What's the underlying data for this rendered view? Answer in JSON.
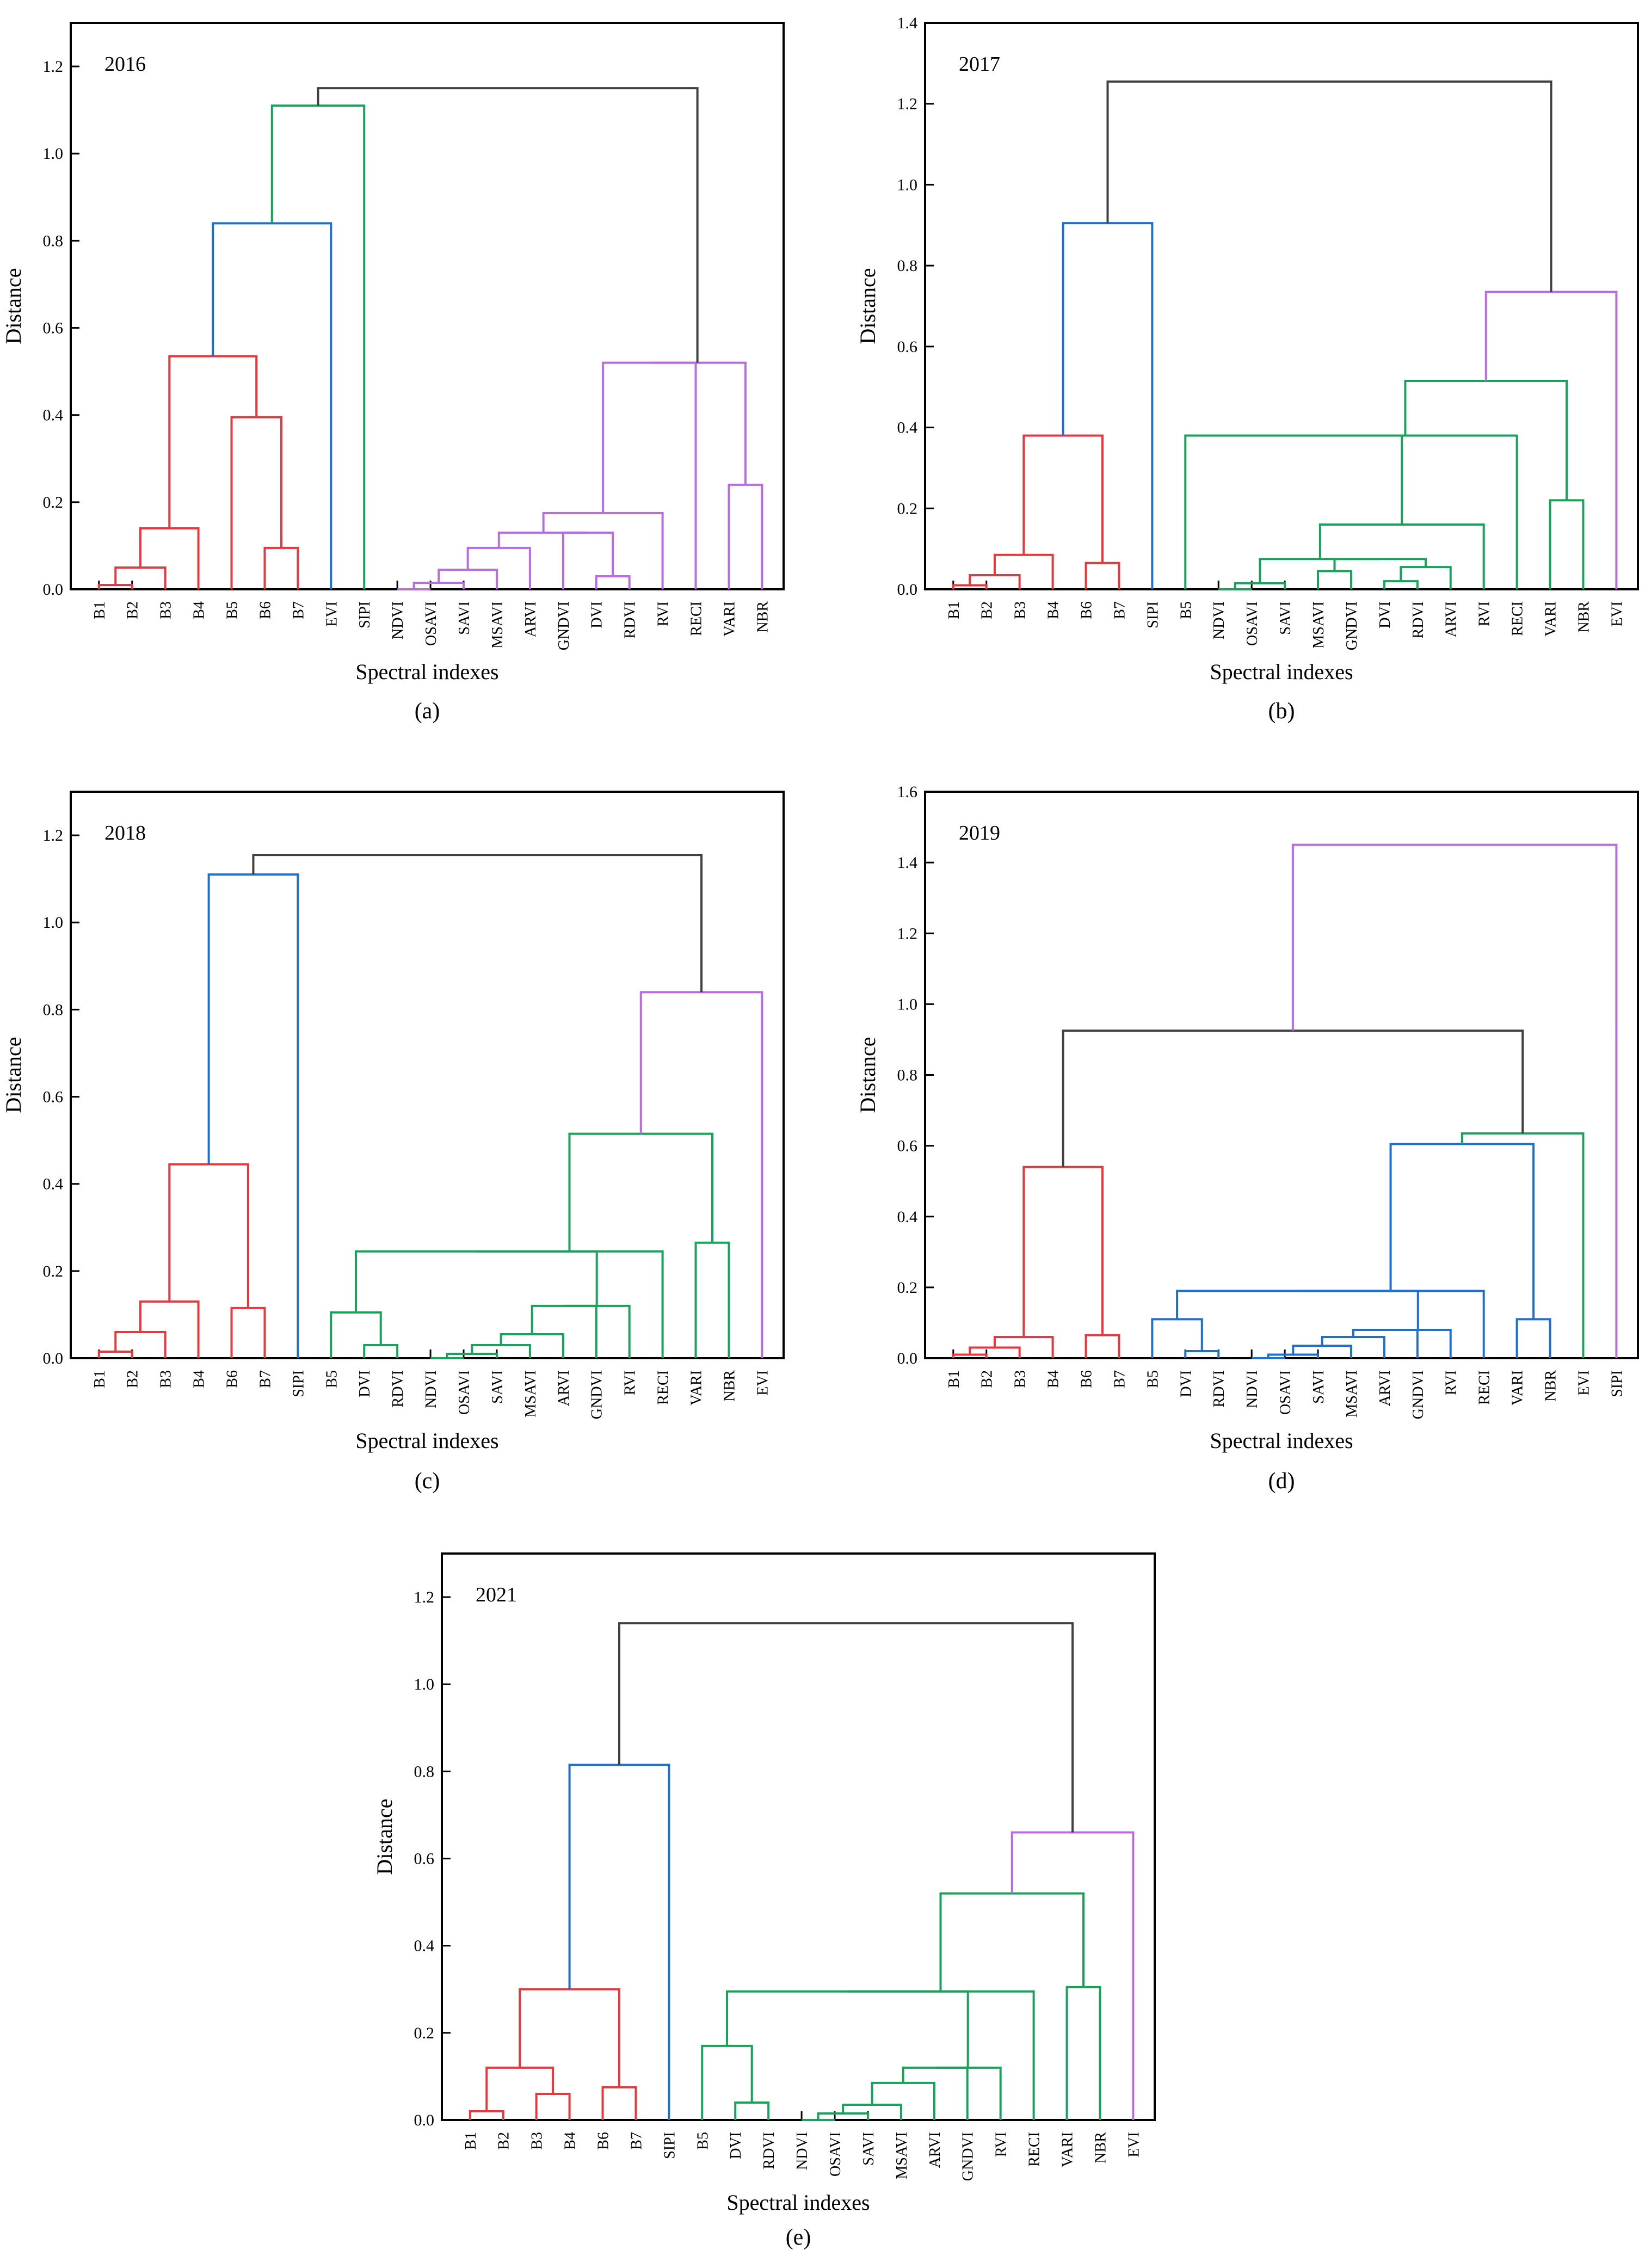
{
  "figure": {
    "description_labels": [
      "(a)",
      "(b)",
      "(c)",
      "(d)",
      "(e)"
    ]
  },
  "chart_data": [
    {
      "type": "dendrogram",
      "panel_label": "(a)",
      "title": "2016",
      "xlabel": "Spectral indexes",
      "ylabel": "Distance",
      "ylim": [
        0,
        1.3
      ],
      "yticks": [
        "0.0",
        "0.2",
        "0.4",
        "0.6",
        "0.8",
        "1.0",
        "1.2"
      ],
      "ytick_values": [
        0,
        0.2,
        0.4,
        0.6,
        0.8,
        1.0,
        1.2
      ],
      "leaves": [
        "B1",
        "B2",
        "B3",
        "B4",
        "B5",
        "B6",
        "B7",
        "EVI",
        "SIPI",
        "NDVI",
        "OSAVI",
        "SAVI",
        "MSAVI",
        "ARVI",
        "GNDVI",
        "DVI",
        "RDVI",
        "RVI",
        "RECI",
        "VARI",
        "NBR"
      ],
      "merges": [
        {
          "left": "B1",
          "right": "B2",
          "height": 0.01,
          "color": "#e8383d"
        },
        {
          "left": "m1",
          "right": "B3",
          "height": 0.05,
          "color": "#e8383d"
        },
        {
          "left": "m2",
          "right": "B4",
          "height": 0.14,
          "color": "#e8383d"
        },
        {
          "left": "B6",
          "right": "B7",
          "height": 0.095,
          "color": "#e8383d"
        },
        {
          "left": "B5",
          "right": "m4",
          "height": 0.395,
          "color": "#e8383d"
        },
        {
          "left": "m3",
          "right": "m5",
          "height": 0.535,
          "color": "#e8383d"
        },
        {
          "left": "m6",
          "right": "EVI",
          "height": 0.84,
          "color": "#1f6fd0"
        },
        {
          "left": "NDVI",
          "right": "OSAVI",
          "height": 0.0,
          "color": "#b86ce0"
        },
        {
          "left": "m8",
          "right": "SAVI",
          "height": 0.015,
          "color": "#b86ce0"
        },
        {
          "left": "m9",
          "right": "MSAVI",
          "height": 0.045,
          "color": "#b86ce0"
        },
        {
          "left": "m10",
          "right": "ARVI",
          "height": 0.095,
          "color": "#b86ce0"
        },
        {
          "left": "DVI",
          "right": "RDVI",
          "height": 0.03,
          "color": "#b86ce0"
        },
        {
          "left": "GNDVI",
          "right": "m12",
          "height": 0.13,
          "color": "#b86ce0"
        },
        {
          "left": "m11",
          "right": "m13",
          "height": 0.13,
          "color": "#b86ce0"
        },
        {
          "left": "m14",
          "right": "RVI",
          "height": 0.175,
          "color": "#b86ce0"
        },
        {
          "left": "VARI",
          "right": "NBR",
          "height": 0.24,
          "color": "#b86ce0"
        },
        {
          "left": "m15",
          "right": "RECI",
          "height": 0.52,
          "color": "#b86ce0"
        },
        {
          "left": "m17",
          "right": "m16",
          "height": 0.52,
          "color": "#b86ce0"
        },
        {
          "left": "m7",
          "right": "SIPI",
          "height": 1.11,
          "color": "#17a35a"
        },
        {
          "left": "m19",
          "right": "m18",
          "height": 1.15,
          "color": "#404040"
        }
      ]
    },
    {
      "type": "dendrogram",
      "panel_label": "(b)",
      "title": "2017",
      "xlabel": "Spectral indexes",
      "ylabel": "Distance",
      "ylim": [
        0,
        1.4
      ],
      "yticks": [
        "0.0",
        "0.2",
        "0.4",
        "0.6",
        "0.8",
        "1.0",
        "1.2",
        "1.4"
      ],
      "ytick_values": [
        0,
        0.2,
        0.4,
        0.6,
        0.8,
        1.0,
        1.2,
        1.4
      ],
      "leaves": [
        "B1",
        "B2",
        "B3",
        "B4",
        "B6",
        "B7",
        "SIPI",
        "B5",
        "NDVI",
        "OSAVI",
        "SAVI",
        "MSAVI",
        "GNDVI",
        "DVI",
        "RDVI",
        "ARVI",
        "RVI",
        "RECI",
        "VARI",
        "NBR",
        "EVI"
      ],
      "merges": [
        {
          "left": "B1",
          "right": "B2",
          "height": 0.01,
          "color": "#e8383d"
        },
        {
          "left": "m1",
          "right": "B3",
          "height": 0.035,
          "color": "#e8383d"
        },
        {
          "left": "m2",
          "right": "B4",
          "height": 0.085,
          "color": "#e8383d"
        },
        {
          "left": "B6",
          "right": "B7",
          "height": 0.065,
          "color": "#e8383d"
        },
        {
          "left": "m3",
          "right": "m4",
          "height": 0.38,
          "color": "#e8383d"
        },
        {
          "left": "m5",
          "right": "SIPI",
          "height": 0.905,
          "color": "#1f6fd0"
        },
        {
          "left": "NDVI",
          "right": "OSAVI",
          "height": 0.0,
          "color": "#17a35a"
        },
        {
          "left": "m7",
          "right": "SAVI",
          "height": 0.015,
          "color": "#17a35a"
        },
        {
          "left": "MSAVI",
          "right": "GNDVI",
          "height": 0.045,
          "color": "#17a35a"
        },
        {
          "left": "DVI",
          "right": "RDVI",
          "height": 0.02,
          "color": "#17a35a"
        },
        {
          "left": "m10",
          "right": "ARVI",
          "height": 0.055,
          "color": "#17a35a"
        },
        {
          "left": "m9",
          "right": "m11",
          "height": 0.075,
          "color": "#17a35a"
        },
        {
          "left": "m8",
          "right": "m12",
          "height": 0.075,
          "color": "#17a35a"
        },
        {
          "left": "m13",
          "right": "RVI",
          "height": 0.16,
          "color": "#17a35a"
        },
        {
          "left": "B5",
          "right": "m14",
          "height": 0.38,
          "color": "#17a35a"
        },
        {
          "left": "VARI",
          "right": "NBR",
          "height": 0.22,
          "color": "#17a35a"
        },
        {
          "left": "m15",
          "right": "RECI",
          "height": 0.38,
          "color": "#17a35a"
        },
        {
          "left": "m17",
          "right": "m16",
          "height": 0.515,
          "color": "#17a35a"
        },
        {
          "left": "m18",
          "right": "EVI",
          "height": 0.735,
          "color": "#b86ce0"
        },
        {
          "left": "m6",
          "right": "m19",
          "height": 1.255,
          "color": "#404040"
        }
      ]
    },
    {
      "type": "dendrogram",
      "panel_label": "(c)",
      "title": "2018",
      "xlabel": "Spectral indexes",
      "ylabel": "Distance",
      "ylim": [
        0,
        1.3
      ],
      "yticks": [
        "0.0",
        "0.2",
        "0.4",
        "0.6",
        "0.8",
        "1.0",
        "1.2"
      ],
      "ytick_values": [
        0,
        0.2,
        0.4,
        0.6,
        0.8,
        1.0,
        1.2
      ],
      "leaves": [
        "B1",
        "B2",
        "B3",
        "B4",
        "B6",
        "B7",
        "SIPI",
        "B5",
        "DVI",
        "RDVI",
        "NDVI",
        "OSAVI",
        "SAVI",
        "MSAVI",
        "ARVI",
        "GNDVI",
        "RVI",
        "RECI",
        "VARI",
        "NBR",
        "EVI"
      ],
      "merges": [
        {
          "left": "B1",
          "right": "B2",
          "height": 0.015,
          "color": "#e8383d"
        },
        {
          "left": "m1",
          "right": "B3",
          "height": 0.06,
          "color": "#e8383d"
        },
        {
          "left": "m2",
          "right": "B4",
          "height": 0.13,
          "color": "#e8383d"
        },
        {
          "left": "B6",
          "right": "B7",
          "height": 0.115,
          "color": "#e8383d"
        },
        {
          "left": "m3",
          "right": "m4",
          "height": 0.445,
          "color": "#e8383d"
        },
        {
          "left": "m5",
          "right": "SIPI",
          "height": 1.11,
          "color": "#1f6fd0"
        },
        {
          "left": "DVI",
          "right": "RDVI",
          "height": 0.03,
          "color": "#17a35a"
        },
        {
          "left": "B5",
          "right": "m7",
          "height": 0.105,
          "color": "#17a35a"
        },
        {
          "left": "NDVI",
          "right": "OSAVI",
          "height": 0.0,
          "color": "#17a35a"
        },
        {
          "left": "m9",
          "right": "SAVI",
          "height": 0.01,
          "color": "#17a35a"
        },
        {
          "left": "m10",
          "right": "MSAVI",
          "height": 0.03,
          "color": "#17a35a"
        },
        {
          "left": "m11",
          "right": "ARVI",
          "height": 0.055,
          "color": "#17a35a"
        },
        {
          "left": "m12",
          "right": "GNDVI",
          "height": 0.12,
          "color": "#17a35a"
        },
        {
          "left": "m13",
          "right": "RVI",
          "height": 0.12,
          "color": "#17a35a"
        },
        {
          "left": "m8",
          "right": "m14",
          "height": 0.245,
          "color": "#17a35a"
        },
        {
          "left": "VARI",
          "right": "NBR",
          "height": 0.265,
          "color": "#17a35a"
        },
        {
          "left": "m15",
          "right": "RECI",
          "height": 0.245,
          "color": "#17a35a"
        },
        {
          "left": "m17",
          "right": "m16",
          "height": 0.515,
          "color": "#17a35a"
        },
        {
          "left": "m18",
          "right": "EVI",
          "height": 0.84,
          "color": "#b86ce0"
        },
        {
          "left": "m6",
          "right": "m19",
          "height": 1.155,
          "color": "#404040"
        }
      ]
    },
    {
      "type": "dendrogram",
      "panel_label": "(d)",
      "title": "2019",
      "xlabel": "Spectral indexes",
      "ylabel": "Distance",
      "ylim": [
        0,
        1.6
      ],
      "yticks": [
        "0.0",
        "0.2",
        "0.4",
        "0.6",
        "0.8",
        "1.0",
        "1.2",
        "1.4",
        "1.6"
      ],
      "ytick_values": [
        0,
        0.2,
        0.4,
        0.6,
        0.8,
        1.0,
        1.2,
        1.4,
        1.6
      ],
      "leaves": [
        "B1",
        "B2",
        "B3",
        "B4",
        "B6",
        "B7",
        "B5",
        "DVI",
        "RDVI",
        "NDVI",
        "OSAVI",
        "SAVI",
        "MSAVI",
        "ARVI",
        "GNDVI",
        "RVI",
        "RECI",
        "VARI",
        "NBR",
        "EVI",
        "SIPI"
      ],
      "merges": [
        {
          "left": "B1",
          "right": "B2",
          "height": 0.01,
          "color": "#e8383d"
        },
        {
          "left": "m1",
          "right": "B3",
          "height": 0.03,
          "color": "#e8383d"
        },
        {
          "left": "m2",
          "right": "B4",
          "height": 0.06,
          "color": "#e8383d"
        },
        {
          "left": "B6",
          "right": "B7",
          "height": 0.065,
          "color": "#e8383d"
        },
        {
          "left": "m3",
          "right": "m4",
          "height": 0.54,
          "color": "#e8383d"
        },
        {
          "left": "DVI",
          "right": "RDVI",
          "height": 0.02,
          "color": "#1f6fd0"
        },
        {
          "left": "B5",
          "right": "m6",
          "height": 0.11,
          "color": "#1f6fd0"
        },
        {
          "left": "NDVI",
          "right": "OSAVI",
          "height": 0.0,
          "color": "#1f6fd0"
        },
        {
          "left": "m8",
          "right": "SAVI",
          "height": 0.01,
          "color": "#1f6fd0"
        },
        {
          "left": "m9",
          "right": "MSAVI",
          "height": 0.035,
          "color": "#1f6fd0"
        },
        {
          "left": "m10",
          "right": "ARVI",
          "height": 0.06,
          "color": "#1f6fd0"
        },
        {
          "left": "m11",
          "right": "GNDVI",
          "height": 0.08,
          "color": "#1f6fd0"
        },
        {
          "left": "m12",
          "right": "RVI",
          "height": 0.08,
          "color": "#1f6fd0"
        },
        {
          "left": "m7",
          "right": "m13",
          "height": 0.19,
          "color": "#1f6fd0"
        },
        {
          "left": "m14",
          "right": "RECI",
          "height": 0.19,
          "color": "#1f6fd0"
        },
        {
          "left": "VARI",
          "right": "NBR",
          "height": 0.11,
          "color": "#1f6fd0"
        },
        {
          "left": "m15",
          "right": "m16",
          "height": 0.605,
          "color": "#1f6fd0"
        },
        {
          "left": "m17",
          "right": "EVI",
          "height": 0.635,
          "color": "#17a35a"
        },
        {
          "left": "m5",
          "right": "m18",
          "height": 0.925,
          "color": "#404040"
        },
        {
          "left": "m19",
          "right": "SIPI",
          "height": 1.45,
          "color": "#b86ce0"
        }
      ]
    },
    {
      "type": "dendrogram",
      "panel_label": "(e)",
      "title": "2021",
      "xlabel": "Spectral indexes",
      "ylabel": "Distance",
      "ylim": [
        0,
        1.3
      ],
      "yticks": [
        "0.0",
        "0.2",
        "0.4",
        "0.6",
        "0.8",
        "1.0",
        "1.2"
      ],
      "ytick_values": [
        0,
        0.2,
        0.4,
        0.6,
        0.8,
        1.0,
        1.2
      ],
      "leaves": [
        "B1",
        "B2",
        "B3",
        "B4",
        "B6",
        "B7",
        "SIPI",
        "B5",
        "DVI",
        "RDVI",
        "NDVI",
        "OSAVI",
        "SAVI",
        "MSAVI",
        "ARVI",
        "GNDVI",
        "RVI",
        "RECI",
        "VARI",
        "NBR",
        "EVI"
      ],
      "merges": [
        {
          "left": "B1",
          "right": "B2",
          "height": 0.02,
          "color": "#e8383d"
        },
        {
          "left": "B3",
          "right": "B4",
          "height": 0.06,
          "color": "#e8383d"
        },
        {
          "left": "m1",
          "right": "m2",
          "height": 0.12,
          "color": "#e8383d"
        },
        {
          "left": "B6",
          "right": "B7",
          "height": 0.075,
          "color": "#e8383d"
        },
        {
          "left": "m3",
          "right": "m4",
          "height": 0.3,
          "color": "#e8383d"
        },
        {
          "left": "m5",
          "right": "SIPI",
          "height": 0.815,
          "color": "#1f6fd0"
        },
        {
          "left": "DVI",
          "right": "RDVI",
          "height": 0.04,
          "color": "#17a35a"
        },
        {
          "left": "B5",
          "right": "m7",
          "height": 0.17,
          "color": "#17a35a"
        },
        {
          "left": "NDVI",
          "right": "OSAVI",
          "height": 0.0,
          "color": "#17a35a"
        },
        {
          "left": "m9",
          "right": "SAVI",
          "height": 0.015,
          "color": "#17a35a"
        },
        {
          "left": "m10",
          "right": "MSAVI",
          "height": 0.035,
          "color": "#17a35a"
        },
        {
          "left": "m11",
          "right": "ARVI",
          "height": 0.085,
          "color": "#17a35a"
        },
        {
          "left": "m12",
          "right": "GNDVI",
          "height": 0.12,
          "color": "#17a35a"
        },
        {
          "left": "m13",
          "right": "RVI",
          "height": 0.12,
          "color": "#17a35a"
        },
        {
          "left": "m8",
          "right": "m14",
          "height": 0.295,
          "color": "#17a35a"
        },
        {
          "left": "m15",
          "right": "RECI",
          "height": 0.295,
          "color": "#17a35a"
        },
        {
          "left": "VARI",
          "right": "NBR",
          "height": 0.305,
          "color": "#17a35a"
        },
        {
          "left": "m16",
          "right": "m17",
          "height": 0.52,
          "color": "#17a35a"
        },
        {
          "left": "m18",
          "right": "EVI",
          "height": 0.66,
          "color": "#b86ce0"
        },
        {
          "left": "m6",
          "right": "m19",
          "height": 1.14,
          "color": "#404040"
        }
      ]
    }
  ]
}
